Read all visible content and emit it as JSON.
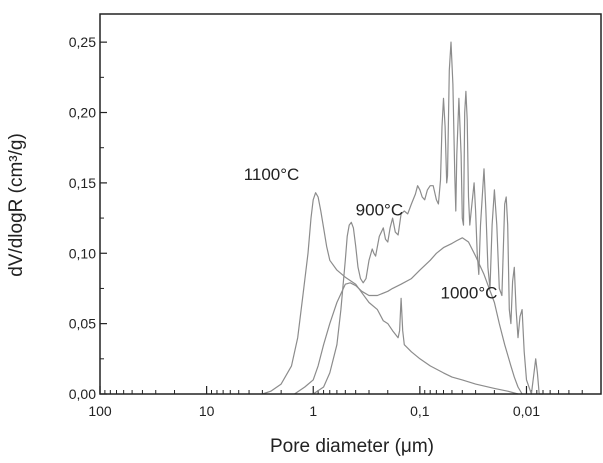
{
  "chart_data": {
    "type": "line",
    "xlabel": "Pore diameter (μm)",
    "ylabel": "dV/dlogR (cm³/g)",
    "x_scale": "log",
    "x_reversed": true,
    "xlim": [
      100,
      0.002
    ],
    "ylim": [
      0,
      0.27
    ],
    "x_ticks": [
      100,
      10,
      1,
      0.1,
      0.01
    ],
    "x_tick_labels": [
      "100",
      "10",
      "1",
      "0,1",
      "0,01"
    ],
    "y_ticks": [
      0,
      0.05,
      0.1,
      0.15,
      0.2,
      0.25
    ],
    "y_tick_labels": [
      "0,00",
      "0,05",
      "0,10",
      "0,15",
      "0,20",
      "0,25"
    ],
    "line_color": "#8c8c8c",
    "grid": false,
    "series": [
      {
        "name": "1100°C",
        "points": [
          [
            3.0,
            0
          ],
          [
            2.5,
            0.002
          ],
          [
            2.0,
            0.007
          ],
          [
            1.6,
            0.02
          ],
          [
            1.4,
            0.04
          ],
          [
            1.25,
            0.07
          ],
          [
            1.12,
            0.1
          ],
          [
            1.05,
            0.125
          ],
          [
            1.0,
            0.138
          ],
          [
            0.95,
            0.143
          ],
          [
            0.9,
            0.14
          ],
          [
            0.85,
            0.13
          ],
          [
            0.8,
            0.118
          ],
          [
            0.75,
            0.105
          ],
          [
            0.7,
            0.095
          ],
          [
            0.6,
            0.088
          ],
          [
            0.5,
            0.083
          ],
          [
            0.4,
            0.078
          ],
          [
            0.35,
            0.072
          ],
          [
            0.3,
            0.065
          ],
          [
            0.25,
            0.06
          ],
          [
            0.22,
            0.052
          ],
          [
            0.2,
            0.05
          ],
          [
            0.18,
            0.045
          ],
          [
            0.16,
            0.04
          ],
          [
            0.155,
            0.045
          ],
          [
            0.15,
            0.068
          ],
          [
            0.145,
            0.045
          ],
          [
            0.14,
            0.035
          ],
          [
            0.12,
            0.03
          ],
          [
            0.1,
            0.025
          ],
          [
            0.08,
            0.02
          ],
          [
            0.06,
            0.015
          ],
          [
            0.05,
            0.012
          ],
          [
            0.04,
            0.01
          ],
          [
            0.03,
            0.007
          ],
          [
            0.02,
            0.004
          ],
          [
            0.015,
            0.002
          ],
          [
            0.012,
            0
          ]
        ]
      },
      {
        "name": "1000°C",
        "points": [
          [
            1.5,
            0
          ],
          [
            1.2,
            0.005
          ],
          [
            1.0,
            0.01
          ],
          [
            0.9,
            0.02
          ],
          [
            0.8,
            0.035
          ],
          [
            0.7,
            0.05
          ],
          [
            0.6,
            0.065
          ],
          [
            0.5,
            0.078
          ],
          [
            0.45,
            0.079
          ],
          [
            0.4,
            0.077
          ],
          [
            0.35,
            0.073
          ],
          [
            0.3,
            0.07
          ],
          [
            0.25,
            0.07
          ],
          [
            0.2,
            0.073
          ],
          [
            0.18,
            0.075
          ],
          [
            0.15,
            0.078
          ],
          [
            0.12,
            0.082
          ],
          [
            0.1,
            0.088
          ],
          [
            0.08,
            0.095
          ],
          [
            0.07,
            0.1
          ],
          [
            0.06,
            0.104
          ],
          [
            0.05,
            0.107
          ],
          [
            0.045,
            0.109
          ],
          [
            0.04,
            0.111
          ],
          [
            0.035,
            0.108
          ],
          [
            0.03,
            0.098
          ],
          [
            0.025,
            0.085
          ],
          [
            0.02,
            0.065
          ],
          [
            0.018,
            0.05
          ],
          [
            0.016,
            0.035
          ],
          [
            0.014,
            0.02
          ],
          [
            0.013,
            0.012
          ],
          [
            0.012,
            0.005
          ],
          [
            0.011,
            0
          ]
        ]
      },
      {
        "name": "900°C",
        "points": [
          [
            1.0,
            0
          ],
          [
            0.8,
            0.005
          ],
          [
            0.7,
            0.015
          ],
          [
            0.6,
            0.035
          ],
          [
            0.55,
            0.06
          ],
          [
            0.5,
            0.095
          ],
          [
            0.48,
            0.112
          ],
          [
            0.46,
            0.12
          ],
          [
            0.44,
            0.122
          ],
          [
            0.42,
            0.118
          ],
          [
            0.4,
            0.105
          ],
          [
            0.38,
            0.09
          ],
          [
            0.36,
            0.082
          ],
          [
            0.34,
            0.079
          ],
          [
            0.32,
            0.082
          ],
          [
            0.3,
            0.095
          ],
          [
            0.28,
            0.103
          ],
          [
            0.27,
            0.1
          ],
          [
            0.26,
            0.098
          ],
          [
            0.24,
            0.112
          ],
          [
            0.22,
            0.118
          ],
          [
            0.21,
            0.11
          ],
          [
            0.2,
            0.108
          ],
          [
            0.19,
            0.118
          ],
          [
            0.18,
            0.125
          ],
          [
            0.17,
            0.115
          ],
          [
            0.16,
            0.113
          ],
          [
            0.15,
            0.128
          ],
          [
            0.14,
            0.13
          ],
          [
            0.13,
            0.128
          ],
          [
            0.12,
            0.135
          ],
          [
            0.11,
            0.142
          ],
          [
            0.105,
            0.148
          ],
          [
            0.1,
            0.145
          ],
          [
            0.095,
            0.14
          ],
          [
            0.09,
            0.138
          ],
          [
            0.085,
            0.145
          ],
          [
            0.08,
            0.148
          ],
          [
            0.075,
            0.148
          ],
          [
            0.07,
            0.138
          ],
          [
            0.067,
            0.135
          ],
          [
            0.064,
            0.152
          ],
          [
            0.062,
            0.19
          ],
          [
            0.06,
            0.21
          ],
          [
            0.058,
            0.19
          ],
          [
            0.056,
            0.15
          ],
          [
            0.055,
            0.155
          ],
          [
            0.053,
            0.23
          ],
          [
            0.051,
            0.25
          ],
          [
            0.049,
            0.22
          ],
          [
            0.047,
            0.155
          ],
          [
            0.046,
            0.13
          ],
          [
            0.045,
            0.17
          ],
          [
            0.043,
            0.21
          ],
          [
            0.041,
            0.17
          ],
          [
            0.04,
            0.125
          ],
          [
            0.039,
            0.12
          ],
          [
            0.038,
            0.2
          ],
          [
            0.037,
            0.215
          ],
          [
            0.036,
            0.195
          ],
          [
            0.035,
            0.14
          ],
          [
            0.034,
            0.12
          ],
          [
            0.033,
            0.13
          ],
          [
            0.031,
            0.15
          ],
          [
            0.03,
            0.13
          ],
          [
            0.029,
            0.1
          ],
          [
            0.028,
            0.085
          ],
          [
            0.027,
            0.12
          ],
          [
            0.025,
            0.16
          ],
          [
            0.024,
            0.13
          ],
          [
            0.023,
            0.09
          ],
          [
            0.022,
            0.075
          ],
          [
            0.021,
            0.12
          ],
          [
            0.02,
            0.145
          ],
          [
            0.019,
            0.12
          ],
          [
            0.018,
            0.075
          ],
          [
            0.017,
            0.07
          ],
          [
            0.016,
            0.135
          ],
          [
            0.0155,
            0.14
          ],
          [
            0.015,
            0.12
          ],
          [
            0.0145,
            0.06
          ],
          [
            0.014,
            0.05
          ],
          [
            0.0135,
            0.08
          ],
          [
            0.013,
            0.09
          ],
          [
            0.0125,
            0.06
          ],
          [
            0.012,
            0.04
          ],
          [
            0.0115,
            0.055
          ],
          [
            0.011,
            0.06
          ],
          [
            0.0105,
            0.03
          ],
          [
            0.01,
            0.01
          ],
          [
            0.009,
            0
          ],
          [
            0.0085,
            0.015
          ],
          [
            0.0082,
            0.025
          ],
          [
            0.0079,
            0.015
          ],
          [
            0.0076,
            0
          ],
          [
            0.007,
            0
          ]
        ]
      }
    ]
  }
}
